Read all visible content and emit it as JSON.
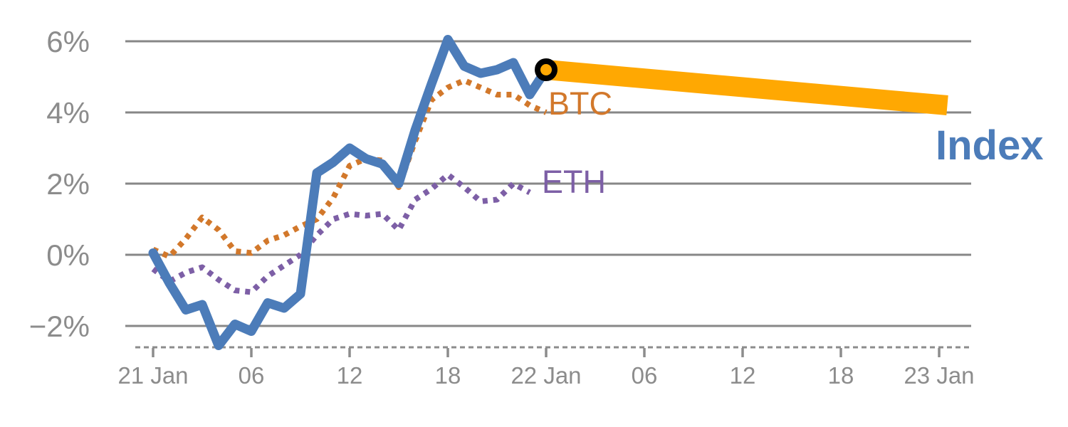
{
  "chart_data": {
    "type": "line",
    "description": "Hourly percent change of crypto Index, BTC and ETH from 21 Jan through 22 Jan, with a projected Index band extending to 23 Jan",
    "grid": true,
    "legend_position": "inline-end-of-line-labels",
    "x_axis": {
      "axis_style": "dashed",
      "tick_hours": [
        0,
        6,
        12,
        18,
        24,
        30,
        36,
        42,
        48
      ],
      "tick_labels": [
        "21 Jan",
        "06",
        "12",
        "18",
        "22 Jan",
        "06",
        "12",
        "18",
        "23 Jan"
      ]
    },
    "y_axis": {
      "unit": "%",
      "tick_values": [
        6,
        4,
        2,
        0,
        -2
      ],
      "tick_labels": [
        "6%",
        "4%",
        "2%",
        "0%",
        "−2%"
      ],
      "ylim": [
        -2.7,
        6.6
      ]
    },
    "colors": {
      "index_blue": "#4C7CB9",
      "btc_orange": "#D2782B",
      "eth_purple": "#7D5FA6",
      "projection_amber": "#FFA802",
      "marker_ring": "#000000",
      "grid_gray": "#878787",
      "label_gray": "#8C8C8C"
    },
    "series": [
      {
        "name": "Index",
        "label": "Index",
        "style": "solid",
        "color": "#4C7CB9",
        "start_hour": 0,
        "interval_hours": 1,
        "values": [
          0.05,
          -0.8,
          -1.55,
          -1.4,
          -2.55,
          -1.95,
          -2.15,
          -1.35,
          -1.5,
          -1.1,
          2.3,
          2.6,
          3.0,
          2.7,
          2.55,
          2.0,
          3.5,
          4.8,
          6.05,
          5.3,
          5.1,
          5.2,
          5.4,
          4.5,
          5.2
        ]
      },
      {
        "name": "BTC",
        "label": "BTC",
        "style": "dotted",
        "color": "#D2782B",
        "start_hour": 0,
        "interval_hours": 1,
        "values": [
          0.15,
          -0.05,
          0.45,
          1.05,
          0.7,
          0.1,
          0.05,
          0.4,
          0.55,
          0.8,
          1.0,
          1.6,
          2.5,
          2.7,
          2.65,
          1.9,
          3.2,
          4.35,
          4.7,
          4.9,
          4.7,
          4.5,
          4.5,
          4.2,
          4.0
        ]
      },
      {
        "name": "ETH",
        "label": "ETH",
        "style": "dotted",
        "color": "#7D5FA6",
        "start_hour": 0,
        "interval_hours": 1,
        "values": [
          -0.4,
          -0.75,
          -0.5,
          -0.35,
          -0.7,
          -1.0,
          -1.05,
          -0.6,
          -0.3,
          0.0,
          0.55,
          1.0,
          1.15,
          1.1,
          1.15,
          0.7,
          1.55,
          1.85,
          2.25,
          1.9,
          1.5,
          1.55,
          2.0,
          1.75
        ]
      }
    ],
    "projection": {
      "series": "Index",
      "color": "#FFA802",
      "start_hour": 24,
      "start_value": 5.2,
      "end_hour": 48.5,
      "end_value": 4.2
    },
    "marker": {
      "shape": "circle",
      "hour": 24,
      "value": 5.2,
      "fill": "#FFA802",
      "ring_color": "#000000"
    }
  }
}
